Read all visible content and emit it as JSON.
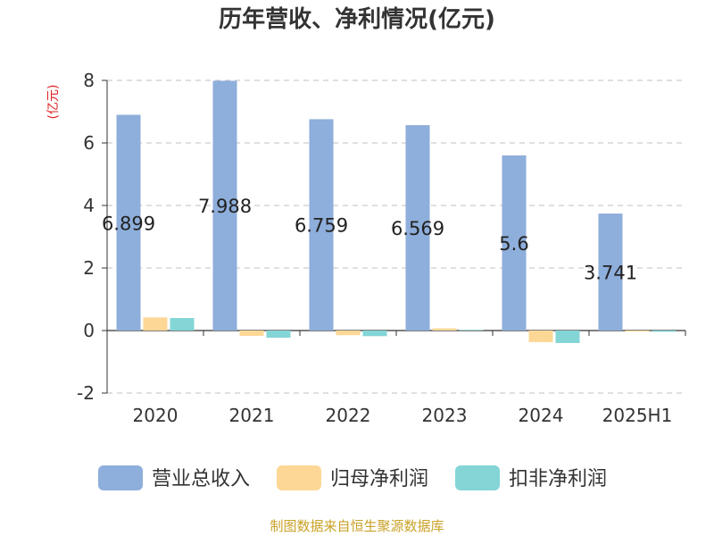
{
  "chart_data": {
    "type": "bar",
    "title": "历年营收、净利情况(亿元)",
    "ylabel": "(亿元)",
    "categories": [
      "2020",
      "2021",
      "2022",
      "2023",
      "2024",
      "2025H1"
    ],
    "ylim": [
      -2,
      8
    ],
    "yticks": [
      -2,
      0,
      2,
      4,
      6,
      8
    ],
    "grid": true,
    "legend_position": "bottom",
    "series": [
      {
        "name": "营业总收入",
        "color": "#8eaedb",
        "values": [
          6.899,
          7.988,
          6.759,
          6.569,
          5.6,
          3.741
        ],
        "labels": [
          "6.899",
          "7.988",
          "6.759",
          "6.569",
          "5.6",
          "3.741"
        ]
      },
      {
        "name": "归母净利润",
        "color": "#fdd796",
        "values": [
          0.42,
          -0.17,
          -0.15,
          0.07,
          -0.37,
          -0.03
        ]
      },
      {
        "name": "扣非净利润",
        "color": "#84d5d6",
        "values": [
          0.4,
          -0.23,
          -0.18,
          0.02,
          -0.4,
          -0.04
        ]
      }
    ]
  },
  "source": {
    "text": "制图数据来自恒生聚源数据库",
    "color": "#c9a227"
  },
  "unit_color": "#e02020"
}
